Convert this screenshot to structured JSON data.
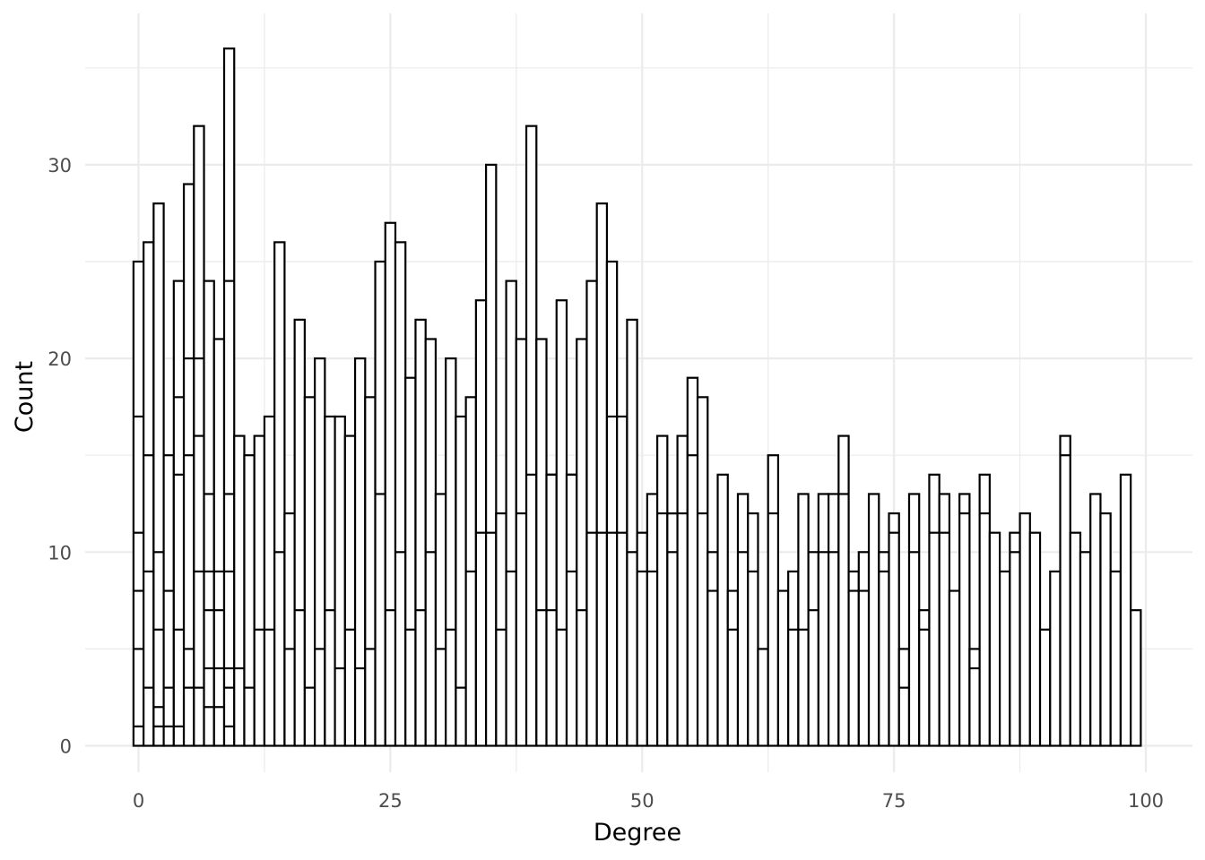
{
  "chart_data": {
    "type": "bar",
    "subtype": "histogram",
    "stacked": true,
    "bar_fill": "#ffffff",
    "bar_outline": "#000000",
    "grid": true,
    "grid_color": "#ebebeb",
    "xlabel": "Degree",
    "ylabel": "Count",
    "xlim": [
      -0.5,
      99.5
    ],
    "ylim": [
      0,
      36
    ],
    "xticks": [
      0,
      25,
      50,
      75,
      100
    ],
    "yticks": [
      0,
      10,
      20,
      30
    ],
    "x": [
      0,
      1,
      2,
      3,
      4,
      5,
      6,
      7,
      8,
      9,
      10,
      11,
      12,
      13,
      14,
      15,
      16,
      17,
      18,
      19,
      20,
      21,
      22,
      23,
      24,
      25,
      26,
      27,
      28,
      29,
      30,
      31,
      32,
      33,
      34,
      35,
      36,
      37,
      38,
      39,
      40,
      41,
      42,
      43,
      44,
      45,
      46,
      47,
      48,
      49,
      50,
      51,
      52,
      53,
      54,
      55,
      56,
      57,
      58,
      59,
      60,
      61,
      62,
      63,
      64,
      65,
      66,
      67,
      68,
      69,
      70,
      71,
      72,
      73,
      74,
      75,
      76,
      77,
      78,
      79,
      80,
      81,
      82,
      83,
      84,
      85,
      86,
      87,
      88,
      89,
      90,
      91,
      92,
      93,
      94,
      95,
      96,
      97,
      98,
      99
    ],
    "totals": [
      25,
      26,
      28,
      15,
      24,
      29,
      32,
      24,
      21,
      36,
      16,
      15,
      16,
      17,
      26,
      12,
      22,
      18,
      20,
      17,
      17,
      16,
      20,
      18,
      25,
      27,
      26,
      19,
      22,
      21,
      13,
      20,
      17,
      18,
      23,
      30,
      12,
      24,
      21,
      32,
      21,
      14,
      23,
      14,
      21,
      24,
      28,
      25,
      17,
      22,
      11,
      13,
      16,
      12,
      16,
      19,
      18,
      10,
      14,
      8,
      13,
      12,
      5,
      15,
      8,
      9,
      13,
      10,
      13,
      13,
      16,
      9,
      10,
      13,
      10,
      12,
      5,
      13,
      7,
      14,
      13,
      8,
      13,
      5,
      14,
      11,
      9,
      11,
      12,
      11,
      6,
      9,
      16,
      11,
      10,
      13,
      12,
      9,
      14,
      7
    ],
    "segment_boundaries": [
      [
        1,
        5,
        8,
        11,
        17
      ],
      [
        3,
        9,
        15
      ],
      [
        1,
        2,
        6,
        10
      ],
      [
        1,
        3,
        8
      ],
      [
        1,
        6,
        14,
        18
      ],
      [
        3,
        5,
        15,
        20
      ],
      [
        3,
        9,
        16,
        20
      ],
      [
        2,
        4,
        7,
        9,
        13
      ],
      [
        2,
        4,
        7,
        9
      ],
      [
        1,
        3,
        4,
        9,
        13,
        24
      ],
      [
        4
      ],
      [
        3
      ],
      [
        6
      ],
      [
        6
      ],
      [
        10
      ],
      [
        5
      ],
      [
        7
      ],
      [
        3
      ],
      [
        5
      ],
      [
        7
      ],
      [
        4
      ],
      [
        6
      ],
      [
        4
      ],
      [
        5
      ],
      [
        13
      ],
      [
        7
      ],
      [
        10
      ],
      [
        6
      ],
      [
        7
      ],
      [
        10
      ],
      [
        5
      ],
      [
        6
      ],
      [
        3
      ],
      [
        9
      ],
      [
        11
      ],
      [
        11
      ],
      [
        6
      ],
      [
        9
      ],
      [
        12
      ],
      [
        14
      ],
      [
        7
      ],
      [
        7,
        14
      ],
      [
        6
      ],
      [
        9,
        14
      ],
      [
        7
      ],
      [
        11
      ],
      [
        11
      ],
      [
        11,
        17
      ],
      [
        11
      ],
      [
        10
      ],
      [
        9
      ],
      [
        9
      ],
      [
        12
      ],
      [
        10,
        12
      ],
      [
        12
      ],
      [
        15
      ],
      [
        12
      ],
      [
        8
      ],
      [],
      [
        6
      ],
      [
        10
      ],
      [
        9
      ],
      [],
      [
        12
      ],
      [],
      [
        6
      ],
      [
        6
      ],
      [
        7
      ],
      [
        10
      ],
      [
        10
      ],
      [
        13
      ],
      [
        8
      ],
      [
        8
      ],
      [],
      [
        9
      ],
      [
        11
      ],
      [
        3
      ],
      [
        10
      ],
      [
        6
      ],
      [
        11
      ],
      [
        11
      ],
      [],
      [
        12
      ],
      [
        4
      ],
      [
        12
      ],
      [],
      [],
      [
        10
      ],
      [],
      [],
      [],
      [],
      [
        15
      ],
      [],
      [],
      [],
      [],
      [],
      [],
      []
    ]
  }
}
